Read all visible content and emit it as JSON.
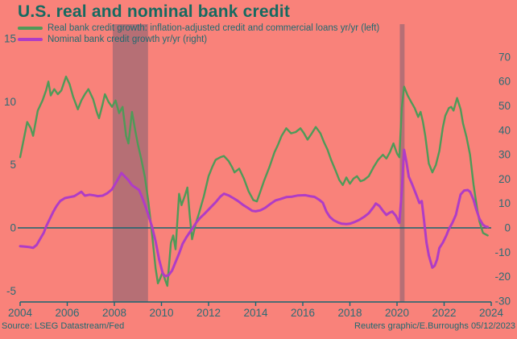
{
  "title": "U.S. real and nominal bank credit",
  "legend": {
    "real_label": "Real bank credit growth: inflation-adjusted credit and commercial loans yr/yr (left)",
    "nominal_label": "Nominal bank credit growth yr/yr (right)"
  },
  "source": "Source: LSEG Datastream/Fed",
  "credit": "Reuters graphic/E.Burroughs 05/12/2023",
  "colors": {
    "background": "#f9827a",
    "title_text": "#166a60",
    "legend_text": "#1d6a70",
    "axis_text": "#2c6b74",
    "axis_line": "#156570",
    "real_line": "#4f9a58",
    "nominal_line": "#af3cc6",
    "band_fill": "rgba(90,85,110,0.42)"
  },
  "chart_data": {
    "type": "line",
    "title": "U.S. real and nominal bank credit",
    "x_axis": {
      "ticks": [
        2004,
        2006,
        2008,
        2010,
        2012,
        2014,
        2016,
        2018,
        2020,
        2022,
        2024
      ],
      "range": [
        2003.85,
        2024.1
      ]
    },
    "left_axis": {
      "ticks": [
        15,
        10,
        5,
        0,
        -5
      ],
      "range": [
        -6,
        15.5
      ],
      "units": "% yr/yr"
    },
    "right_axis": {
      "ticks": [
        70,
        60,
        50,
        40,
        30,
        20,
        10,
        0,
        -10,
        -20,
        -30
      ],
      "range": [
        -30.5,
        70.5
      ],
      "units": "% yr/yr"
    },
    "grid": false,
    "zero_line": true,
    "shaded_bands": [
      {
        "name": "recession-2008",
        "x0": 2007.93,
        "x1": 2009.43
      },
      {
        "name": "recession-2020",
        "x0": 2020.12,
        "x1": 2020.32
      }
    ],
    "series": [
      {
        "name": "Real bank credit growth: inflation-adjusted credit and commercial loans yr/yr (left)",
        "axis": "left",
        "color": "#4f9a58",
        "width": 2.4,
        "points": [
          [
            2004.0,
            5.6
          ],
          [
            2004.15,
            7.0
          ],
          [
            2004.3,
            8.4
          ],
          [
            2004.45,
            7.9
          ],
          [
            2004.55,
            7.3
          ],
          [
            2004.75,
            9.3
          ],
          [
            2004.95,
            10.1
          ],
          [
            2005.1,
            10.9
          ],
          [
            2005.2,
            11.6
          ],
          [
            2005.3,
            10.5
          ],
          [
            2005.45,
            11.0
          ],
          [
            2005.6,
            10.6
          ],
          [
            2005.75,
            10.9
          ],
          [
            2005.95,
            12.0
          ],
          [
            2006.1,
            11.4
          ],
          [
            2006.25,
            10.4
          ],
          [
            2006.45,
            9.4
          ],
          [
            2006.6,
            10.1
          ],
          [
            2006.75,
            10.6
          ],
          [
            2006.9,
            11.0
          ],
          [
            2007.1,
            10.2
          ],
          [
            2007.25,
            9.2
          ],
          [
            2007.35,
            8.7
          ],
          [
            2007.5,
            9.8
          ],
          [
            2007.6,
            10.6
          ],
          [
            2007.75,
            10.0
          ],
          [
            2007.9,
            9.6
          ],
          [
            2008.05,
            10.1
          ],
          [
            2008.2,
            9.1
          ],
          [
            2008.35,
            9.6
          ],
          [
            2008.5,
            7.3
          ],
          [
            2008.6,
            6.7
          ],
          [
            2008.75,
            9.2
          ],
          [
            2008.9,
            7.6
          ],
          [
            2009.0,
            6.6
          ],
          [
            2009.15,
            5.4
          ],
          [
            2009.3,
            4.0
          ],
          [
            2009.45,
            2.0
          ],
          [
            2009.6,
            -0.5
          ],
          [
            2009.75,
            -3.2
          ],
          [
            2009.85,
            -4.4
          ],
          [
            2009.95,
            -4.0
          ],
          [
            2010.05,
            -3.5
          ],
          [
            2010.15,
            -4.1
          ],
          [
            2010.25,
            -4.6
          ],
          [
            2010.4,
            -1.2
          ],
          [
            2010.5,
            -0.6
          ],
          [
            2010.6,
            -1.7
          ],
          [
            2010.75,
            2.7
          ],
          [
            2010.85,
            1.8
          ],
          [
            2011.0,
            2.6
          ],
          [
            2011.1,
            3.2
          ],
          [
            2011.2,
            1.0
          ],
          [
            2011.3,
            -0.9
          ],
          [
            2011.45,
            0.3
          ],
          [
            2011.6,
            1.2
          ],
          [
            2011.8,
            2.5
          ],
          [
            2012.0,
            4.1
          ],
          [
            2012.15,
            4.8
          ],
          [
            2012.3,
            5.4
          ],
          [
            2012.5,
            5.6
          ],
          [
            2012.65,
            5.7
          ],
          [
            2012.85,
            5.3
          ],
          [
            2013.0,
            4.8
          ],
          [
            2013.1,
            4.4
          ],
          [
            2013.3,
            4.7
          ],
          [
            2013.5,
            3.9
          ],
          [
            2013.7,
            2.9
          ],
          [
            2013.9,
            2.2
          ],
          [
            2014.05,
            2.1
          ],
          [
            2014.2,
            2.9
          ],
          [
            2014.35,
            3.7
          ],
          [
            2014.6,
            4.9
          ],
          [
            2014.8,
            6.0
          ],
          [
            2014.95,
            6.6
          ],
          [
            2015.1,
            7.3
          ],
          [
            2015.3,
            7.9
          ],
          [
            2015.5,
            7.5
          ],
          [
            2015.7,
            7.6
          ],
          [
            2015.9,
            7.9
          ],
          [
            2016.05,
            7.5
          ],
          [
            2016.2,
            7.0
          ],
          [
            2016.35,
            7.4
          ],
          [
            2016.55,
            8.0
          ],
          [
            2016.75,
            7.5
          ],
          [
            2016.9,
            6.8
          ],
          [
            2017.05,
            6.2
          ],
          [
            2017.2,
            5.4
          ],
          [
            2017.4,
            4.5
          ],
          [
            2017.55,
            3.8
          ],
          [
            2017.7,
            3.4
          ],
          [
            2017.85,
            4.0
          ],
          [
            2018.0,
            3.5
          ],
          [
            2018.15,
            3.9
          ],
          [
            2018.3,
            4.1
          ],
          [
            2018.45,
            3.7
          ],
          [
            2018.6,
            3.8
          ],
          [
            2018.8,
            4.1
          ],
          [
            2019.0,
            4.8
          ],
          [
            2019.2,
            5.4
          ],
          [
            2019.4,
            5.8
          ],
          [
            2019.55,
            5.5
          ],
          [
            2019.7,
            6.0
          ],
          [
            2019.85,
            6.7
          ],
          [
            2020.0,
            5.9
          ],
          [
            2020.1,
            5.6
          ],
          [
            2020.2,
            9.5
          ],
          [
            2020.3,
            11.2
          ],
          [
            2020.45,
            10.5
          ],
          [
            2020.6,
            10.0
          ],
          [
            2020.75,
            9.5
          ],
          [
            2020.9,
            8.8
          ],
          [
            2021.0,
            9.2
          ],
          [
            2021.1,
            8.4
          ],
          [
            2021.2,
            7.3
          ],
          [
            2021.35,
            5.1
          ],
          [
            2021.5,
            4.4
          ],
          [
            2021.65,
            5.0
          ],
          [
            2021.8,
            6.1
          ],
          [
            2021.95,
            8.0
          ],
          [
            2022.05,
            8.9
          ],
          [
            2022.2,
            9.5
          ],
          [
            2022.3,
            9.6
          ],
          [
            2022.4,
            9.3
          ],
          [
            2022.55,
            10.3
          ],
          [
            2022.7,
            9.4
          ],
          [
            2022.8,
            8.3
          ],
          [
            2022.95,
            7.2
          ],
          [
            2023.1,
            5.8
          ],
          [
            2023.25,
            3.4
          ],
          [
            2023.4,
            1.5
          ],
          [
            2023.5,
            0.5
          ],
          [
            2023.65,
            -0.4
          ],
          [
            2023.85,
            -0.6
          ]
        ]
      },
      {
        "name": "Nominal bank credit growth yr/yr (right)",
        "axis": "right",
        "color": "#af3cc6",
        "width": 3,
        "points": [
          [
            2004.0,
            -7.5
          ],
          [
            2004.2,
            -7.7
          ],
          [
            2004.4,
            -7.9
          ],
          [
            2004.55,
            -8.2
          ],
          [
            2004.7,
            -7.0
          ],
          [
            2004.85,
            -4.5
          ],
          [
            2005.0,
            -2.0
          ],
          [
            2005.1,
            0.5
          ],
          [
            2005.25,
            3.5
          ],
          [
            2005.4,
            6.5
          ],
          [
            2005.55,
            9.0
          ],
          [
            2005.7,
            11.0
          ],
          [
            2005.9,
            12.2
          ],
          [
            2006.1,
            12.6
          ],
          [
            2006.3,
            13.0
          ],
          [
            2006.5,
            14.2
          ],
          [
            2006.6,
            14.8
          ],
          [
            2006.75,
            13.2
          ],
          [
            2006.95,
            13.6
          ],
          [
            2007.15,
            13.3
          ],
          [
            2007.3,
            13.0
          ],
          [
            2007.5,
            13.2
          ],
          [
            2007.7,
            14.2
          ],
          [
            2007.9,
            15.8
          ],
          [
            2008.1,
            19.0
          ],
          [
            2008.3,
            22.5
          ],
          [
            2008.45,
            21.0
          ],
          [
            2008.6,
            19.5
          ],
          [
            2008.75,
            17.5
          ],
          [
            2008.9,
            16.5
          ],
          [
            2009.05,
            15.5
          ],
          [
            2009.2,
            12.0
          ],
          [
            2009.35,
            8.0
          ],
          [
            2009.5,
            3.5
          ],
          [
            2009.6,
            0.5
          ],
          [
            2009.75,
            -5.5
          ],
          [
            2009.9,
            -13.0
          ],
          [
            2010.05,
            -18.5
          ],
          [
            2010.15,
            -19.8
          ],
          [
            2010.3,
            -19.4
          ],
          [
            2010.45,
            -17.5
          ],
          [
            2010.6,
            -14.0
          ],
          [
            2010.75,
            -10.5
          ],
          [
            2010.9,
            -6.5
          ],
          [
            2011.05,
            -4.0
          ],
          [
            2011.2,
            -1.8
          ],
          [
            2011.35,
            0.3
          ],
          [
            2011.5,
            2.5
          ],
          [
            2011.65,
            4.2
          ],
          [
            2011.8,
            5.5
          ],
          [
            2011.95,
            7.0
          ],
          [
            2012.1,
            8.5
          ],
          [
            2012.3,
            10.5
          ],
          [
            2012.5,
            12.8
          ],
          [
            2012.65,
            14.0
          ],
          [
            2012.85,
            13.3
          ],
          [
            2013.05,
            12.2
          ],
          [
            2013.25,
            11.0
          ],
          [
            2013.45,
            9.5
          ],
          [
            2013.65,
            8.3
          ],
          [
            2013.85,
            7.0
          ],
          [
            2014.0,
            6.8
          ],
          [
            2014.2,
            7.2
          ],
          [
            2014.4,
            8.2
          ],
          [
            2014.65,
            10.0
          ],
          [
            2014.85,
            11.3
          ],
          [
            2015.05,
            11.8
          ],
          [
            2015.3,
            12.6
          ],
          [
            2015.55,
            12.8
          ],
          [
            2015.8,
            13.3
          ],
          [
            2016.1,
            13.4
          ],
          [
            2016.3,
            13.0
          ],
          [
            2016.5,
            12.7
          ],
          [
            2016.7,
            11.5
          ],
          [
            2016.85,
            10.3
          ],
          [
            2017.0,
            6.7
          ],
          [
            2017.15,
            4.5
          ],
          [
            2017.3,
            3.2
          ],
          [
            2017.5,
            2.2
          ],
          [
            2017.65,
            1.7
          ],
          [
            2017.85,
            1.6
          ],
          [
            2018.0,
            1.7
          ],
          [
            2018.2,
            2.4
          ],
          [
            2018.4,
            3.3
          ],
          [
            2018.6,
            4.5
          ],
          [
            2018.8,
            6.0
          ],
          [
            2019.0,
            8.5
          ],
          [
            2019.1,
            10.0
          ],
          [
            2019.25,
            9.0
          ],
          [
            2019.4,
            7.0
          ],
          [
            2019.55,
            5.3
          ],
          [
            2019.7,
            6.3
          ],
          [
            2019.8,
            6.7
          ],
          [
            2019.95,
            5.0
          ],
          [
            2020.1,
            2.0
          ],
          [
            2020.2,
            15.0
          ],
          [
            2020.3,
            32.0
          ],
          [
            2020.4,
            27.0
          ],
          [
            2020.5,
            21.0
          ],
          [
            2020.65,
            17.7
          ],
          [
            2020.8,
            14.0
          ],
          [
            2020.95,
            10.2
          ],
          [
            2021.05,
            11.0
          ],
          [
            2021.15,
            3.0
          ],
          [
            2021.25,
            -6.0
          ],
          [
            2021.35,
            -11.3
          ],
          [
            2021.5,
            -16.3
          ],
          [
            2021.6,
            -15.5
          ],
          [
            2021.7,
            -13.0
          ],
          [
            2021.8,
            -8.3
          ],
          [
            2021.95,
            -6.0
          ],
          [
            2022.1,
            -3.0
          ],
          [
            2022.2,
            -0.5
          ],
          [
            2022.35,
            2.0
          ],
          [
            2022.5,
            5.3
          ],
          [
            2022.6,
            9.5
          ],
          [
            2022.7,
            13.7
          ],
          [
            2022.85,
            15.3
          ],
          [
            2023.0,
            15.5
          ],
          [
            2023.1,
            14.8
          ],
          [
            2023.25,
            11.5
          ],
          [
            2023.35,
            8.0
          ],
          [
            2023.5,
            3.7
          ],
          [
            2023.65,
            1.3
          ],
          [
            2023.75,
            0.6
          ],
          [
            2023.85,
            0.4
          ]
        ]
      }
    ]
  }
}
